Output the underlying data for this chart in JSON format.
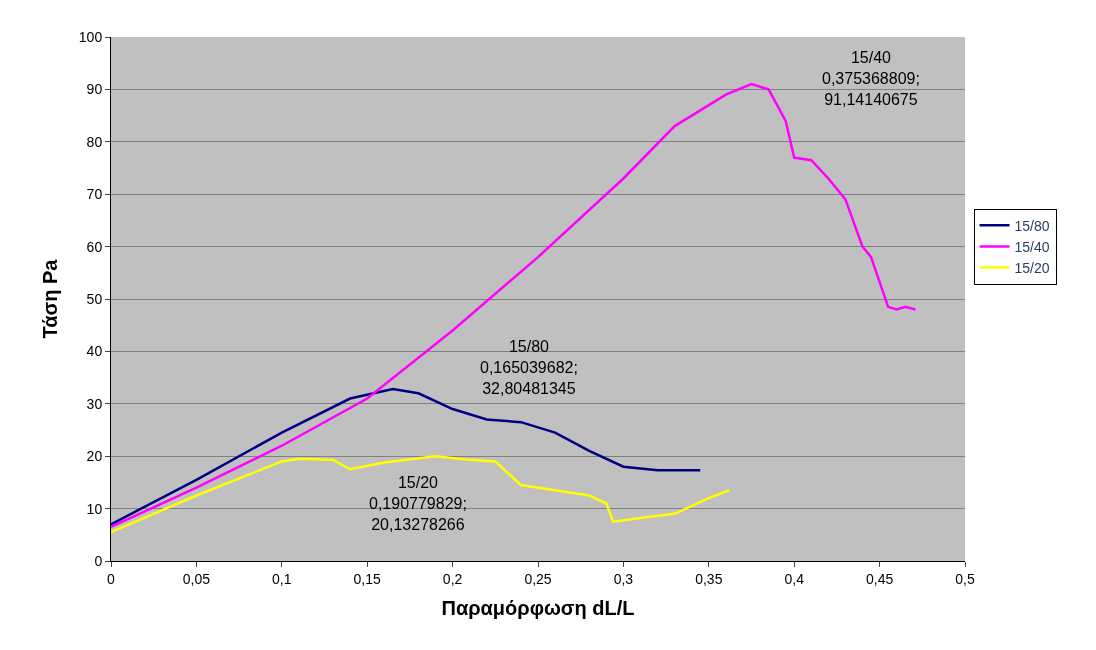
{
  "chart_data": {
    "type": "line",
    "xlabel": "Παραμόρφωση dL/L",
    "ylabel": "Τάση Pa",
    "series": [
      {
        "name": "15/80",
        "color": "#000080",
        "x": [
          0,
          0.05,
          0.1,
          0.14,
          0.165,
          0.18,
          0.2,
          0.22,
          0.24,
          0.26,
          0.28,
          0.3,
          0.32,
          0.345
        ],
        "values": [
          7,
          15.5,
          24.5,
          31,
          32.8,
          32,
          29,
          27,
          26.5,
          24.5,
          21,
          18,
          17.3,
          17.3
        ]
      },
      {
        "name": "15/40",
        "color": "#ff00ff",
        "x": [
          0,
          0.05,
          0.1,
          0.15,
          0.2,
          0.25,
          0.3,
          0.33,
          0.36,
          0.375,
          0.385,
          0.395,
          0.4,
          0.41,
          0.42,
          0.43,
          0.44,
          0.445,
          0.455,
          0.46,
          0.465,
          0.471
        ],
        "values": [
          6.5,
          14,
          22,
          31,
          44,
          58,
          73,
          83,
          89,
          91,
          90,
          84,
          77,
          76.5,
          73,
          69,
          60,
          58,
          48.5,
          48,
          48.5,
          48
        ]
      },
      {
        "name": "15/20",
        "color": "#ffff00",
        "x": [
          0,
          0.05,
          0.1,
          0.11,
          0.13,
          0.14,
          0.16,
          0.19,
          0.21,
          0.225,
          0.24,
          0.26,
          0.28,
          0.29,
          0.294,
          0.31,
          0.33,
          0.35,
          0.362
        ],
        "values": [
          5.5,
          12.5,
          19,
          19.5,
          19.3,
          17.5,
          18.8,
          20,
          19.3,
          19,
          14.5,
          13.5,
          12.5,
          11,
          7.5,
          8.2,
          9,
          12,
          13.5
        ]
      }
    ],
    "xlim": [
      0,
      0.5
    ],
    "ylim": [
      0,
      100
    ],
    "xticks": [
      0,
      {
        "value": 0.05,
        "label": "0,05"
      },
      {
        "value": 0.1,
        "label": "0,1"
      },
      {
        "value": 0.15,
        "label": "0,15"
      },
      {
        "value": 0.2,
        "label": "0,2"
      },
      {
        "value": 0.25,
        "label": "0,25"
      },
      {
        "value": 0.3,
        "label": "0,3"
      },
      {
        "value": 0.35,
        "label": "0,35"
      },
      {
        "value": 0.4,
        "label": "0,4"
      },
      {
        "value": 0.45,
        "label": "0,45"
      },
      {
        "value": 0.5,
        "label": "0,5"
      }
    ],
    "yticks": [
      0,
      10,
      20,
      30,
      40,
      50,
      60,
      70,
      80,
      90,
      100
    ],
    "grid": "y",
    "legend": "right",
    "annotations": [
      "15/80\n0,165039682;\n32,80481345",
      "15/40\n0,375368809;\n91,14140675",
      "15/20\n0,190779829;\n20,13278266"
    ]
  }
}
